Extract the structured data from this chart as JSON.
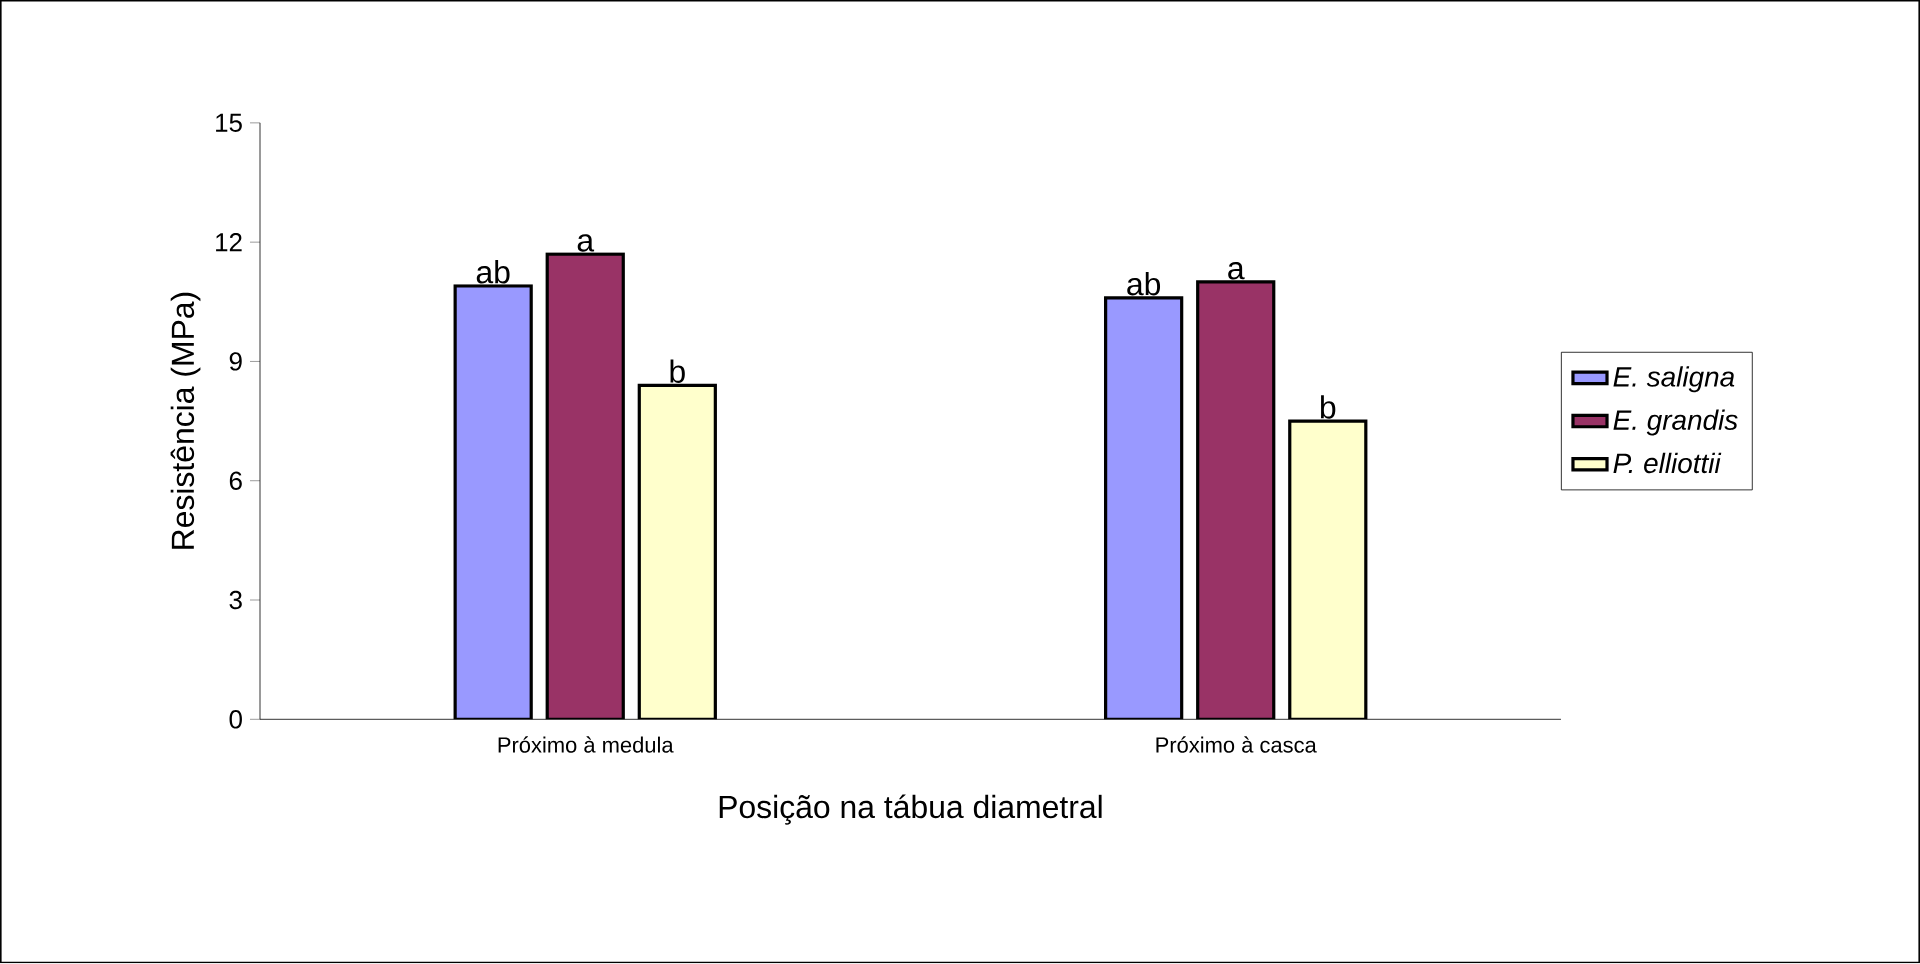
{
  "chart_data": {
    "type": "bar",
    "xlabel": "Posição na tábua diametral",
    "ylabel": "Resistência (MPa)",
    "categories": [
      "Próximo à medula",
      "Próximo à casca"
    ],
    "series": [
      {
        "name": "*E. saligna*",
        "color": "#9999ff",
        "values": [
          10.9,
          10.6
        ]
      },
      {
        "name": "*E. grandis*",
        "color": "#993366",
        "values": [
          11.7,
          11.0
        ]
      },
      {
        "name": "*P. elliottii*",
        "color": "#ffffcc",
        "values": [
          8.4,
          7.5
        ]
      }
    ],
    "ylim": [
      0,
      15
    ],
    "yticks": [
      0,
      3,
      6,
      9,
      12,
      15
    ],
    "grid": false,
    "legend": "right",
    "annotations": [
      "ab",
      "a",
      "b",
      "ab",
      "a",
      "b"
    ]
  }
}
